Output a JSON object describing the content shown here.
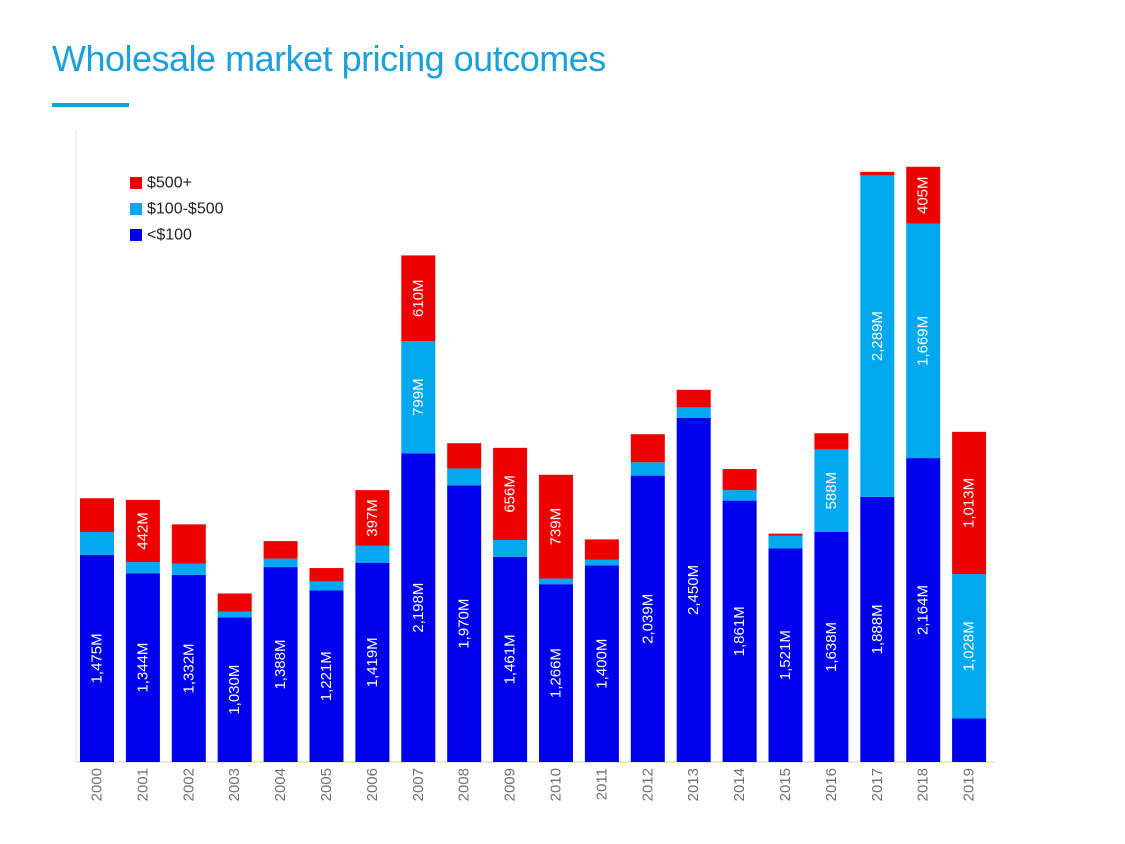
{
  "page": {
    "title": "Wholesale market pricing outcomes"
  },
  "colors": {
    "title": "#1aa0dc",
    "low": "#0000ee",
    "mid": "#00a8f0",
    "high": "#ee0000"
  },
  "chart_data": {
    "type": "bar",
    "stacked": true,
    "title": "",
    "xlabel": "",
    "ylabel": "",
    "ylim": [
      0,
      4500
    ],
    "grid": false,
    "legend_position": "top-left",
    "categories": [
      "2000",
      "2001",
      "2002",
      "2003",
      "2004",
      "2005",
      "2006",
      "2007",
      "2008",
      "2009",
      "2010",
      "2011",
      "2012",
      "2013",
      "2014",
      "2015",
      "2016",
      "2017",
      "2018",
      "2019"
    ],
    "series": [
      {
        "name": "<$100",
        "key": "low",
        "values": [
          1475,
          1344,
          1332,
          1030,
          1388,
          1221,
          1419,
          2198,
          1970,
          1461,
          1266,
          1400,
          2039,
          2450,
          1861,
          1521,
          1638,
          1888,
          2164,
          310
        ],
        "labels": [
          "1,475M",
          "1,344M",
          "1,332M",
          "1,030M",
          "1,388M",
          "1,221M",
          "1,419M",
          "2,198M",
          "1,970M",
          "1,461M",
          "1,266M",
          "1,400M",
          "2,039M",
          "2,450M",
          "1,861M",
          "1,521M",
          "1,638M",
          "1,888M",
          "2,164M",
          ""
        ]
      },
      {
        "name": "$100-$500",
        "key": "mid",
        "values": [
          163,
          80,
          80,
          40,
          60,
          65,
          120,
          799,
          120,
          120,
          40,
          40,
          95,
          75,
          75,
          90,
          588,
          2289,
          1669,
          1028
        ],
        "labels": [
          "",
          "",
          "",
          "",
          "",
          "",
          "",
          "799M",
          "",
          "",
          "",
          "",
          "",
          "",
          "",
          "",
          "588M",
          "2,289M",
          "1,669M",
          "1,028M"
        ]
      },
      {
        "name": "$500+",
        "key": "high",
        "values": [
          240,
          442,
          280,
          130,
          125,
          95,
          397,
          610,
          180,
          656,
          739,
          145,
          200,
          125,
          150,
          15,
          115,
          25,
          405,
          1013
        ],
        "labels": [
          "",
          "442M",
          "",
          "",
          "",
          "",
          "397M",
          "610M",
          "",
          "656M",
          "739M",
          "",
          "",
          "",
          "",
          "",
          "",
          "",
          "405M",
          "1,013M"
        ]
      }
    ],
    "legend": [
      {
        "label": "$500+",
        "key": "high"
      },
      {
        "label": "$100-$500",
        "key": "mid"
      },
      {
        "label": "<$100",
        "key": "low"
      }
    ]
  }
}
